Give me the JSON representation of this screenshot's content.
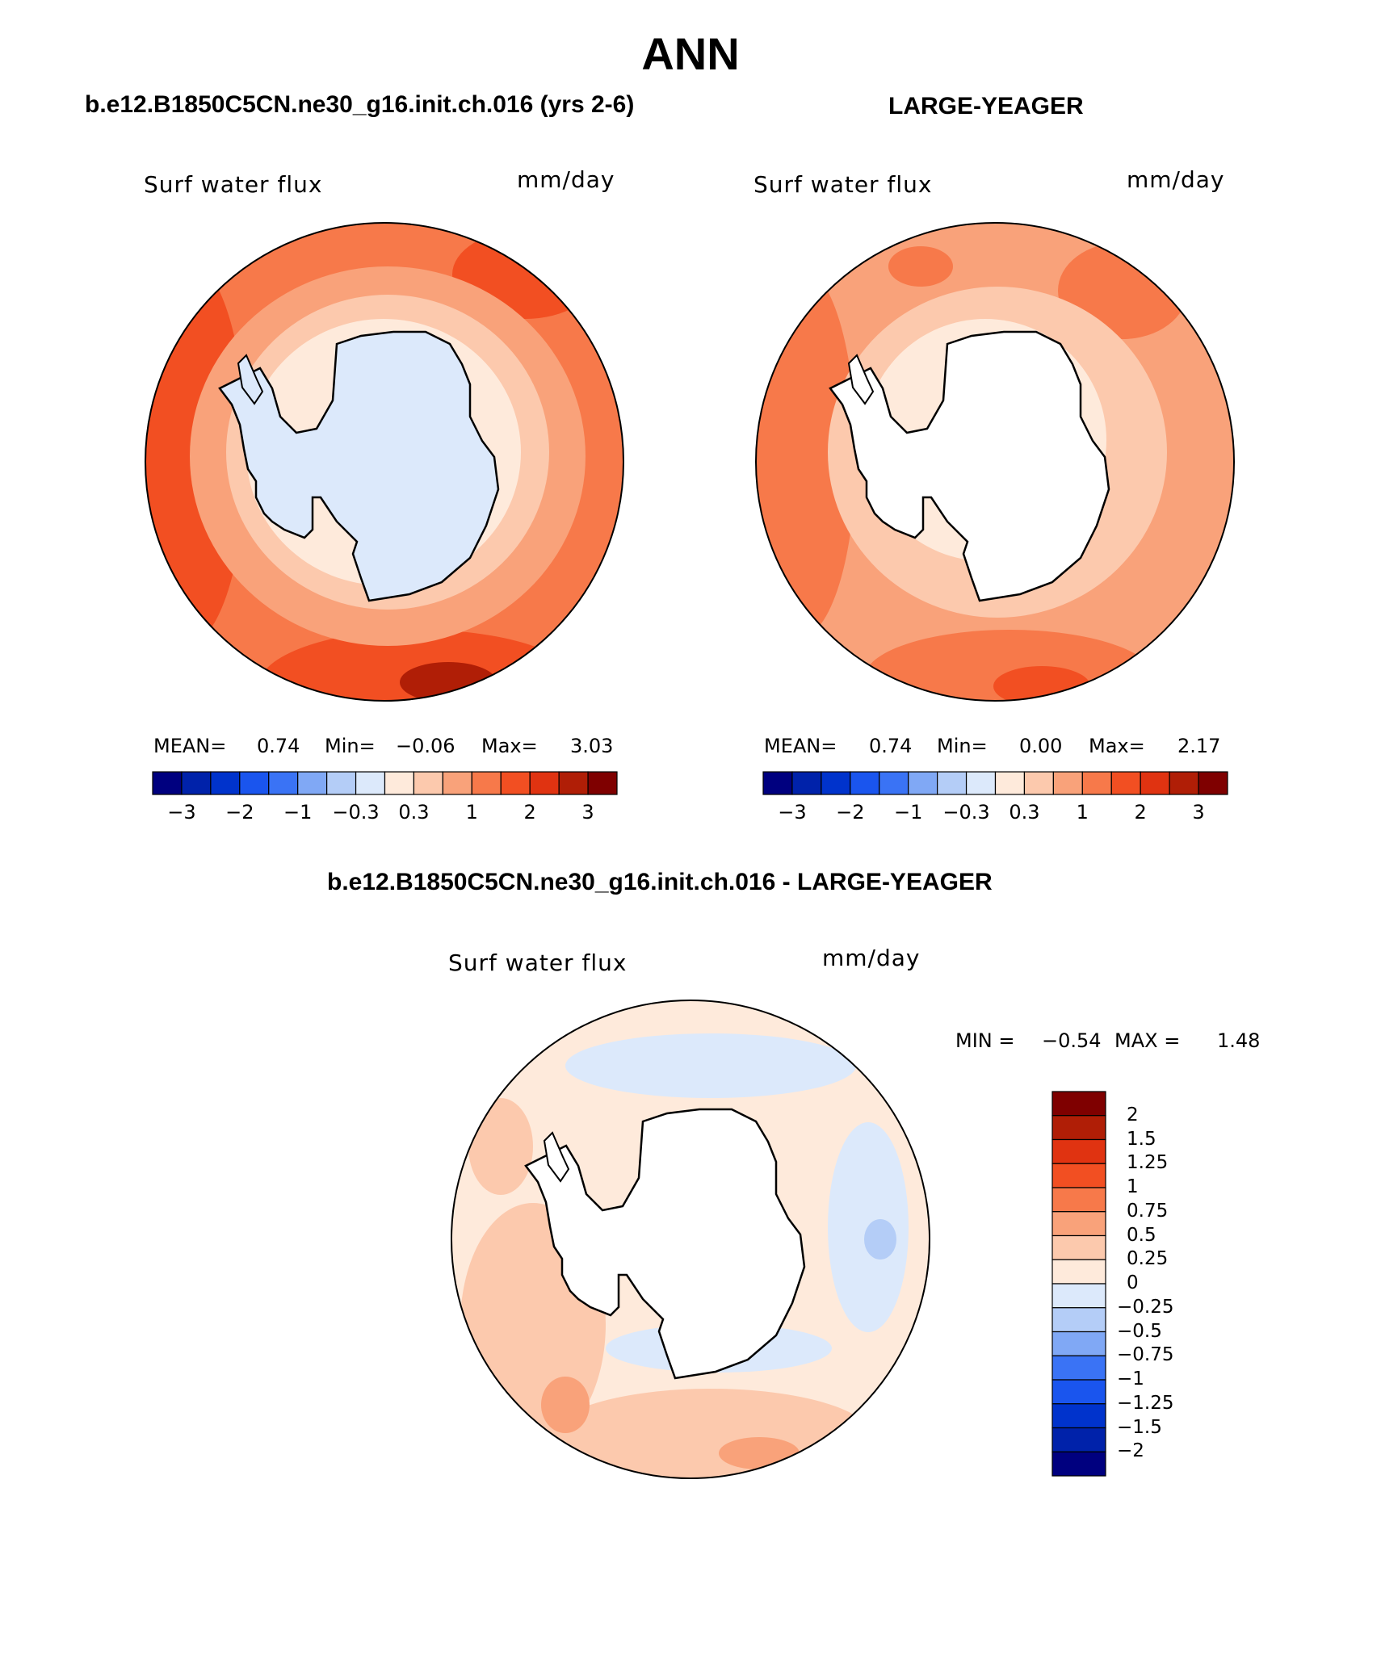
{
  "title": "ANN",
  "panels": [
    {
      "id": "case",
      "heading": "b.e12.B1850C5CN.ne30_g16.init.ch.016 (yrs 2-6)",
      "variable_label": "Surf water flux",
      "units": "mm/day",
      "stats": {
        "mean_label": "MEAN=",
        "mean": "0.74",
        "min_label": "Min=",
        "min": "−0.06",
        "max_label": "Max=",
        "max": "3.03"
      }
    },
    {
      "id": "obs",
      "heading": "LARGE-YEAGER",
      "variable_label": "Surf water flux",
      "units": "mm/day",
      "stats": {
        "mean_label": "MEAN=",
        "mean": "0.74",
        "min_label": "Min=",
        "min": "0.00",
        "max_label": "Max=",
        "max": "2.17"
      }
    },
    {
      "id": "diff",
      "heading": "b.e12.B1850C5CN.ne30_g16.init.ch.016 - LARGE-YEAGER",
      "variable_label": "Surf water flux",
      "units": "mm/day",
      "stats": {
        "min_label": "MIN =",
        "min": "−0.54",
        "max_label": "MAX =",
        "max": "1.48"
      }
    }
  ],
  "colorbar_horizontal": {
    "colors": [
      "#00007f",
      "#0022aa",
      "#0033cc",
      "#1a55ee",
      "#3a73f5",
      "#80a8f5",
      "#b4cdf7",
      "#dce9fb",
      "#feeadb",
      "#fcc9ad",
      "#f9a27a",
      "#f7794a",
      "#f24f22",
      "#e03311",
      "#b01e06",
      "#7f0000"
    ],
    "tick_labels": [
      "−3",
      "−2",
      "−1",
      "−0.3",
      "0.3",
      "1",
      "2",
      "3"
    ],
    "tick_boundaries": [
      1,
      3,
      5,
      7,
      9,
      11,
      13,
      15
    ]
  },
  "colorbar_vertical": {
    "colors_top_to_bottom": [
      "#7f0000",
      "#b01e06",
      "#e03311",
      "#f24f22",
      "#f7794a",
      "#f9a27a",
      "#fcc9ad",
      "#feeadb",
      "#dce9fb",
      "#b4cdf7",
      "#80a8f5",
      "#3a73f5",
      "#1a55ee",
      "#0033cc",
      "#0022aa",
      "#00007f"
    ],
    "tick_labels": [
      "2",
      "1.5",
      "1.25",
      "1",
      "0.75",
      "0.5",
      "0.25",
      "0",
      "−0.25",
      "−0.5",
      "−0.75",
      "−1",
      "−1.25",
      "−1.5",
      "−2"
    ]
  }
}
